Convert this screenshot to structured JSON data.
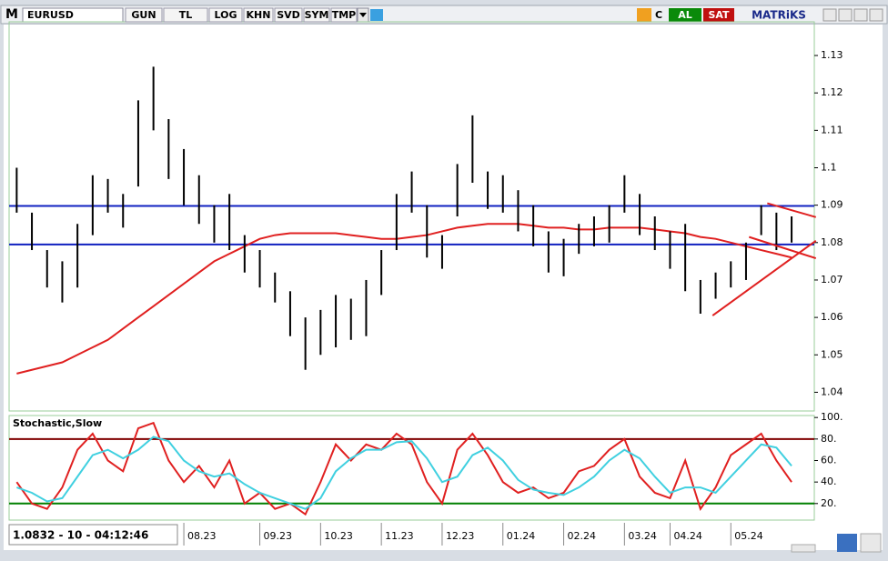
{
  "toolbar": {
    "logo": "M",
    "symbol": "EURUSD",
    "buttons": [
      "GUN",
      "TL",
      "LOG",
      "KHN",
      "SVD",
      "SYM",
      "TMP"
    ],
    "c": "C",
    "buy": "AL",
    "sell": "SAT",
    "brand": "MATRiKS"
  },
  "status": "1.0832 - 10 - 04:12:46",
  "chart_data": [
    {
      "type": "ohlc",
      "categories": [
        null,
        null,
        null,
        null,
        null,
        null,
        null,
        null,
        null,
        null,
        null,
        "08.23",
        null,
        null,
        null,
        null,
        "09.23",
        null,
        null,
        null,
        "10.23",
        null,
        null,
        null,
        "11.23",
        null,
        null,
        null,
        "12.23",
        null,
        null,
        null,
        "01.24",
        null,
        null,
        null,
        "02.24",
        null,
        null,
        null,
        "03.24",
        null,
        null,
        "04.24",
        null,
        null,
        null,
        "05.24",
        null,
        null,
        null,
        null
      ],
      "high": [
        1.1,
        1.088,
        1.078,
        1.075,
        1.085,
        1.098,
        1.097,
        1.093,
        1.118,
        1.127,
        1.113,
        1.105,
        1.098,
        1.09,
        1.093,
        1.082,
        1.078,
        1.072,
        1.067,
        1.06,
        1.062,
        1.066,
        1.065,
        1.07,
        1.078,
        1.093,
        1.099,
        1.09,
        1.082,
        1.101,
        1.114,
        1.099,
        1.098,
        1.094,
        1.09,
        1.083,
        1.081,
        1.085,
        1.087,
        1.09,
        1.098,
        1.093,
        1.087,
        1.083,
        1.085,
        1.07,
        1.072,
        1.075,
        1.08,
        1.09,
        1.088,
        1.087
      ],
      "low": [
        1.088,
        1.078,
        1.068,
        1.064,
        1.068,
        1.082,
        1.088,
        1.084,
        1.095,
        1.11,
        1.097,
        1.09,
        1.085,
        1.08,
        1.078,
        1.072,
        1.068,
        1.064,
        1.055,
        1.046,
        1.05,
        1.052,
        1.054,
        1.055,
        1.066,
        1.078,
        1.088,
        1.076,
        1.073,
        1.087,
        1.096,
        1.089,
        1.088,
        1.083,
        1.079,
        1.072,
        1.071,
        1.077,
        1.079,
        1.08,
        1.088,
        1.082,
        1.078,
        1.073,
        1.067,
        1.061,
        1.065,
        1.068,
        1.07,
        1.082,
        1.078,
        1.08
      ],
      "ma": [
        1.045,
        1.046,
        1.047,
        1.048,
        1.05,
        1.052,
        1.054,
        1.057,
        1.06,
        1.063,
        1.066,
        1.069,
        1.072,
        1.075,
        1.077,
        1.079,
        1.081,
        1.082,
        1.0825,
        1.0825,
        1.0825,
        1.0825,
        1.082,
        1.0815,
        1.081,
        1.081,
        1.0815,
        1.082,
        1.083,
        1.084,
        1.0845,
        1.085,
        1.085,
        1.085,
        1.0845,
        1.084,
        1.084,
        1.0835,
        1.0835,
        1.084,
        1.084,
        1.084,
        1.0835,
        1.083,
        1.0825,
        1.0815,
        1.081,
        1.08,
        1.079,
        1.078,
        1.077,
        1.076
      ],
      "hlines": [
        1.0898,
        1.0795
      ],
      "trendlines": [
        {
          "x": [
            45.8,
            52.6
          ],
          "y": [
            1.0605,
            1.0805
          ]
        },
        {
          "x": [
            49.4,
            52.6
          ],
          "y": [
            1.0905,
            1.0868
          ]
        },
        {
          "x": [
            48.2,
            52.6
          ],
          "y": [
            1.0815,
            1.0758
          ]
        }
      ],
      "ylim": [
        1.035,
        1.139
      ],
      "yticks": [
        1.04,
        1.05,
        1.06,
        1.07,
        1.08,
        1.09,
        1.1,
        1.11,
        1.12,
        1.13
      ]
    },
    {
      "type": "stochastic",
      "title": "Stochastic,Slow",
      "series": [
        {
          "color": "#e02020",
          "values": [
            40,
            20,
            15,
            35,
            70,
            85,
            60,
            50,
            90,
            95,
            60,
            40,
            55,
            35,
            60,
            20,
            30,
            15,
            20,
            10,
            40,
            75,
            60,
            75,
            70,
            85,
            75,
            40,
            20,
            70,
            85,
            65,
            40,
            30,
            35,
            25,
            30,
            50,
            55,
            70,
            80,
            45,
            30,
            25,
            60,
            15,
            35,
            65,
            75,
            85,
            60,
            40
          ]
        },
        {
          "color": "#40d0e0",
          "values": [
            35,
            30,
            22,
            25,
            45,
            65,
            70,
            62,
            70,
            82,
            78,
            60,
            50,
            45,
            48,
            38,
            30,
            25,
            20,
            15,
            25,
            50,
            62,
            70,
            70,
            77,
            78,
            62,
            40,
            45,
            65,
            72,
            60,
            42,
            33,
            30,
            28,
            35,
            45,
            60,
            70,
            62,
            45,
            30,
            35,
            35,
            30,
            45,
            60,
            75,
            72,
            55
          ]
        }
      ],
      "hlines": [
        {
          "value": 80,
          "color": "#800000"
        },
        {
          "value": 20,
          "color": "#008000"
        }
      ],
      "ylim": [
        8,
        101
      ],
      "yticks": [
        {
          "value": 20,
          "label": "20."
        },
        {
          "value": 40,
          "label": "40."
        },
        {
          "value": 60,
          "label": "60."
        },
        {
          "value": 80,
          "label": "80."
        },
        {
          "value": 100,
          "label": "100."
        }
      ]
    }
  ]
}
